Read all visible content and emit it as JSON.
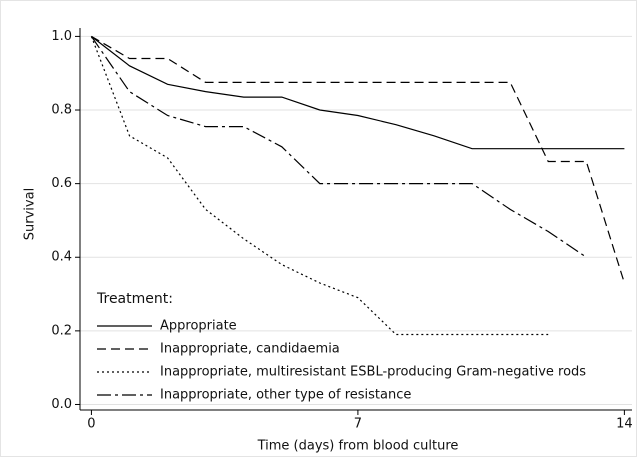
{
  "chart_data": {
    "type": "line",
    "y_label": "Survival",
    "x_label": "Time (days) from blood culture",
    "legend_title": "Treatment:",
    "legend_position": "lower-left",
    "x": [
      0,
      1,
      2,
      3,
      4,
      5,
      6,
      7,
      8,
      9,
      10,
      11,
      12,
      13,
      14
    ],
    "series": [
      {
        "name": "Appropriate",
        "color": "#000000",
        "dash": "none",
        "values": [
          1.0,
          0.92,
          0.87,
          0.85,
          0.835,
          0.835,
          0.8,
          0.785,
          0.76,
          0.73,
          0.695,
          0.695,
          0.695,
          0.695,
          0.695
        ]
      },
      {
        "name": "Inappropriate, candidaemia",
        "color": "#000000",
        "dash": "9,5",
        "values": [
          1.0,
          0.94,
          0.94,
          0.875,
          0.875,
          0.875,
          0.875,
          0.875,
          0.875,
          0.875,
          0.875,
          0.875,
          0.66,
          0.66,
          0.33
        ]
      },
      {
        "name": "Inappropriate, multiresistant ESBL-producing Gram-negative rods",
        "color": "#000000",
        "dash": "2,3",
        "values": [
          1.0,
          0.73,
          0.67,
          0.53,
          0.45,
          0.38,
          0.33,
          0.29,
          0.19,
          0.19,
          0.19,
          0.19,
          0.19,
          null,
          null
        ]
      },
      {
        "name": "Inappropriate, other type of resistance",
        "color": "#000000",
        "dash": "14,4,3,4",
        "values": [
          1.0,
          0.85,
          0.785,
          0.755,
          0.755,
          0.7,
          0.6,
          0.6,
          0.6,
          0.6,
          0.6,
          0.53,
          0.47,
          0.4,
          null
        ]
      }
    ],
    "xlim": [
      -0.3,
      14.2
    ],
    "ylim": [
      -0.015,
      1.05
    ],
    "xticks": [
      0,
      7,
      14
    ],
    "yticks": [
      {
        "value": 0,
        "label": "0.0"
      },
      {
        "value": 0.2,
        "label": "0.2"
      },
      {
        "value": 0.4,
        "label": "0.4"
      },
      {
        "value": 0.6,
        "label": "0.6"
      },
      {
        "value": 0.8,
        "label": "0.8"
      },
      {
        "value": 1,
        "label": "1.0"
      }
    ],
    "grid": true
  }
}
